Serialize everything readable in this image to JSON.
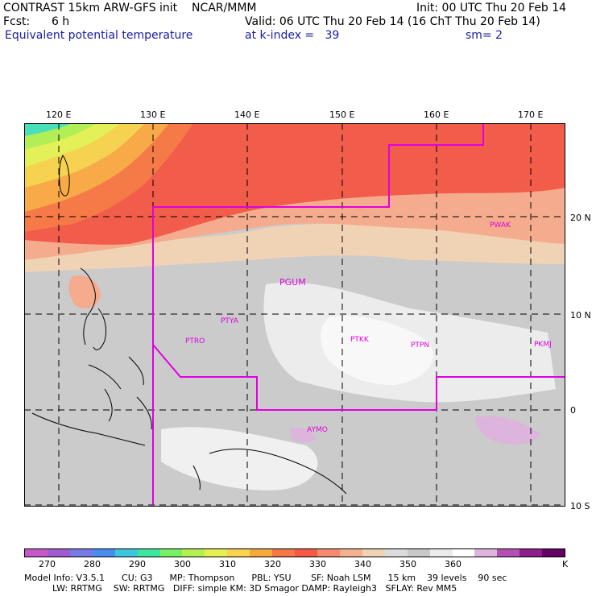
{
  "header": {
    "line1_left": "CONTRAST 15km ARW-GFS init    NCAR/MMM",
    "line1_right": "Init: 00 UTC Thu 20 Feb 14",
    "fcst": "Fcst:      6 h",
    "valid": "Valid: 06 UTC Thu 20 Feb 14 (16 ChT Thu 20 Feb 14)",
    "field": "Equivalent potential temperature",
    "level": "at k-index =   39",
    "smooth": "sm= 2"
  },
  "axes": {
    "lon_labels": [
      "120 E",
      "130 E",
      "140 E",
      "150 E",
      "160 E",
      "170 E"
    ],
    "lat_labels": [
      "20 N",
      "10 N",
      "0",
      "10 S"
    ]
  },
  "stations": [
    {
      "id": "PWAK"
    },
    {
      "id": "PGUM"
    },
    {
      "id": "PTYA"
    },
    {
      "id": "PTRO"
    },
    {
      "id": "PTKK"
    },
    {
      "id": "PTPN"
    },
    {
      "id": "PKMJ"
    },
    {
      "id": "AYMO"
    }
  ],
  "colorbar": {
    "labels": [
      "270",
      "280",
      "290",
      "300",
      "310",
      "320",
      "330",
      "340",
      "350",
      "360"
    ],
    "unit": "K",
    "colors": [
      "#c858c8",
      "#a05ad2",
      "#7878e6",
      "#4b8cf0",
      "#3cc8dc",
      "#3ce6a0",
      "#78f064",
      "#b4f050",
      "#e6f050",
      "#fad250",
      "#f5aa3c",
      "#f57846",
      "#f55a46",
      "#f58a6e",
      "#f5b090",
      "#f0d2b4",
      "#dcdcdc",
      "#c8c8c8",
      "#ebebeb",
      "#ffffff",
      "#dcb4dc",
      "#b450b4",
      "#8c1e8c",
      "#640064"
    ]
  },
  "model_info": {
    "line1": "Model Info: V3.5.1      CU: G3      MP: Thompson      PBL: YSU       SF: Noah LSM      15 km    39 levels    90 sec",
    "line2": "          LW: RRTMG    SW: RRTMG   DIFF: simple KM: 3D Smagor DAMP: Rayleigh3   SFLAY: Rev MM5"
  }
}
